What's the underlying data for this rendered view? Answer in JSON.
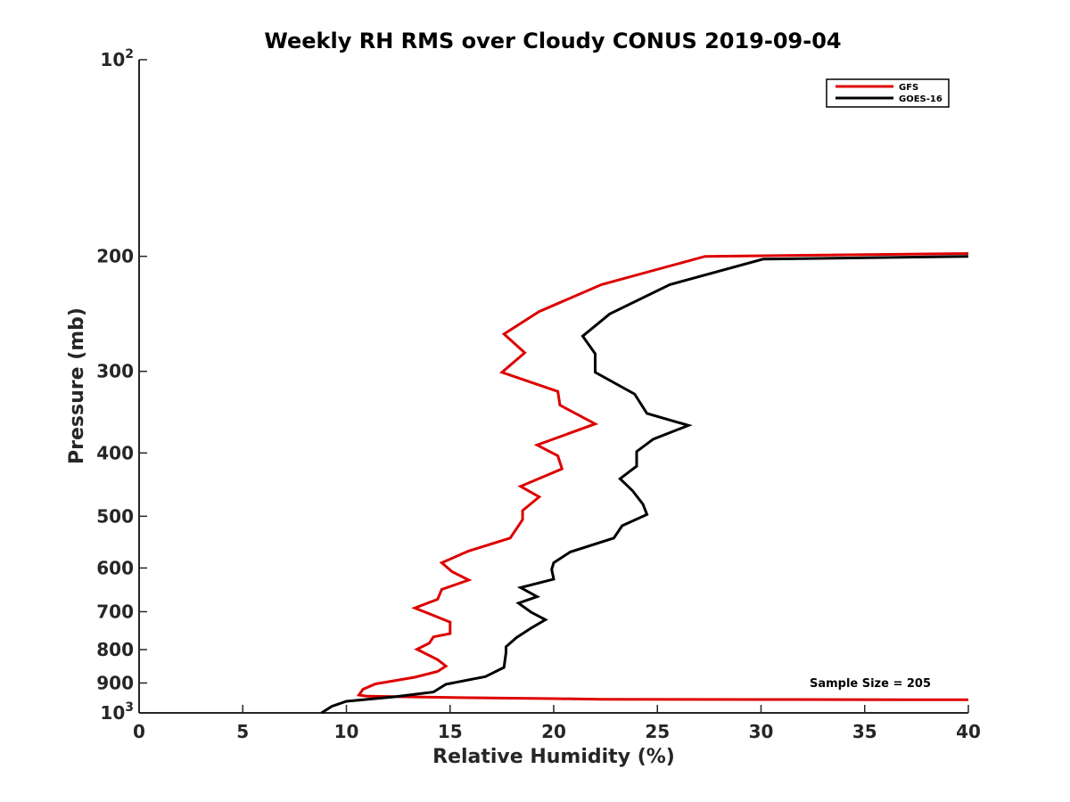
{
  "chart_data": {
    "type": "line",
    "title": "Weekly RH RMS over Cloudy CONUS 2019-09-04",
    "xlabel": "Relative Humidity (%)",
    "ylabel": "Pressure (mb)",
    "xlim": [
      0,
      40
    ],
    "ylim": [
      100,
      1000
    ],
    "y_scale": "log",
    "y_reversed": true,
    "x_ticks": [
      "0",
      "5",
      "10",
      "15",
      "20",
      "25",
      "30",
      "35",
      "40"
    ],
    "y_ticks": [
      {
        "value": 100,
        "label": "10",
        "sup": "2"
      },
      {
        "value": 200,
        "label": "200",
        "sup": ""
      },
      {
        "value": 300,
        "label": "300",
        "sup": ""
      },
      {
        "value": 400,
        "label": "400",
        "sup": ""
      },
      {
        "value": 500,
        "label": "500",
        "sup": ""
      },
      {
        "value": 600,
        "label": "600",
        "sup": ""
      },
      {
        "value": 700,
        "label": "700",
        "sup": ""
      },
      {
        "value": 800,
        "label": "800",
        "sup": ""
      },
      {
        "value": 900,
        "label": "900",
        "sup": ""
      },
      {
        "value": 1000,
        "label": "10",
        "sup": "3"
      }
    ],
    "grid": false,
    "legend_position": "top-right",
    "annotation": "Sample Size = 205",
    "series": [
      {
        "name": "GFS",
        "color": "#dd0000",
        "points": [
          [
            40,
            198
          ],
          [
            27.3,
            200
          ],
          [
            22.3,
            221
          ],
          [
            19.3,
            243
          ],
          [
            17.6,
            263
          ],
          [
            18.6,
            281
          ],
          [
            17.5,
            301
          ],
          [
            20.2,
            322
          ],
          [
            20.3,
            338
          ],
          [
            22.0,
            361
          ],
          [
            19.2,
            389
          ],
          [
            20.2,
            404
          ],
          [
            20.4,
            423
          ],
          [
            18.4,
            450
          ],
          [
            19.3,
            467
          ],
          [
            18.5,
            490
          ],
          [
            18.5,
            506
          ],
          [
            17.9,
            540
          ],
          [
            15.9,
            565
          ],
          [
            14.6,
            589
          ],
          [
            15.1,
            608
          ],
          [
            15.9,
            626
          ],
          [
            14.6,
            647
          ],
          [
            14.4,
            670
          ],
          [
            13.3,
            691
          ],
          [
            15.0,
            726
          ],
          [
            15.0,
            756
          ],
          [
            14.2,
            765
          ],
          [
            14.0,
            782
          ],
          [
            13.4,
            799
          ],
          [
            14.4,
            829
          ],
          [
            14.8,
            848
          ],
          [
            14.4,
            864
          ],
          [
            13.3,
            882
          ],
          [
            11.4,
            903
          ],
          [
            10.8,
            920
          ],
          [
            10.6,
            939
          ],
          [
            11.0,
            943
          ],
          [
            13.0,
            945
          ],
          [
            16.0,
            948
          ],
          [
            20.0,
            951
          ],
          [
            22.3,
            953
          ],
          [
            30.0,
            954
          ],
          [
            40.0,
            955
          ]
        ]
      },
      {
        "name": "GOES-16",
        "color": "#000000",
        "points": [
          [
            40,
            200
          ],
          [
            30.1,
            202
          ],
          [
            25.6,
            221
          ],
          [
            22.7,
            245
          ],
          [
            21.4,
            265
          ],
          [
            22.0,
            282
          ],
          [
            22.0,
            301
          ],
          [
            23.9,
            325
          ],
          [
            24.5,
            348
          ],
          [
            26.5,
            363
          ],
          [
            24.8,
            381
          ],
          [
            24.0,
            398
          ],
          [
            24.0,
            419
          ],
          [
            23.2,
            438
          ],
          [
            23.8,
            457
          ],
          [
            24.3,
            479
          ],
          [
            24.5,
            497
          ],
          [
            23.3,
            517
          ],
          [
            22.9,
            540
          ],
          [
            20.8,
            567
          ],
          [
            20.0,
            589
          ],
          [
            19.9,
            603
          ],
          [
            20.0,
            624
          ],
          [
            18.4,
            643
          ],
          [
            19.2,
            664
          ],
          [
            18.3,
            679
          ],
          [
            18.9,
            701
          ],
          [
            19.6,
            720
          ],
          [
            18.9,
            742
          ],
          [
            18.2,
            767
          ],
          [
            17.7,
            792
          ],
          [
            17.7,
            808
          ],
          [
            17.6,
            852
          ],
          [
            16.7,
            880
          ],
          [
            14.8,
            904
          ],
          [
            14.2,
            929
          ],
          [
            12.3,
            945
          ],
          [
            10.0,
            960
          ],
          [
            9.3,
            977
          ],
          [
            8.8,
            1000
          ]
        ]
      }
    ]
  }
}
